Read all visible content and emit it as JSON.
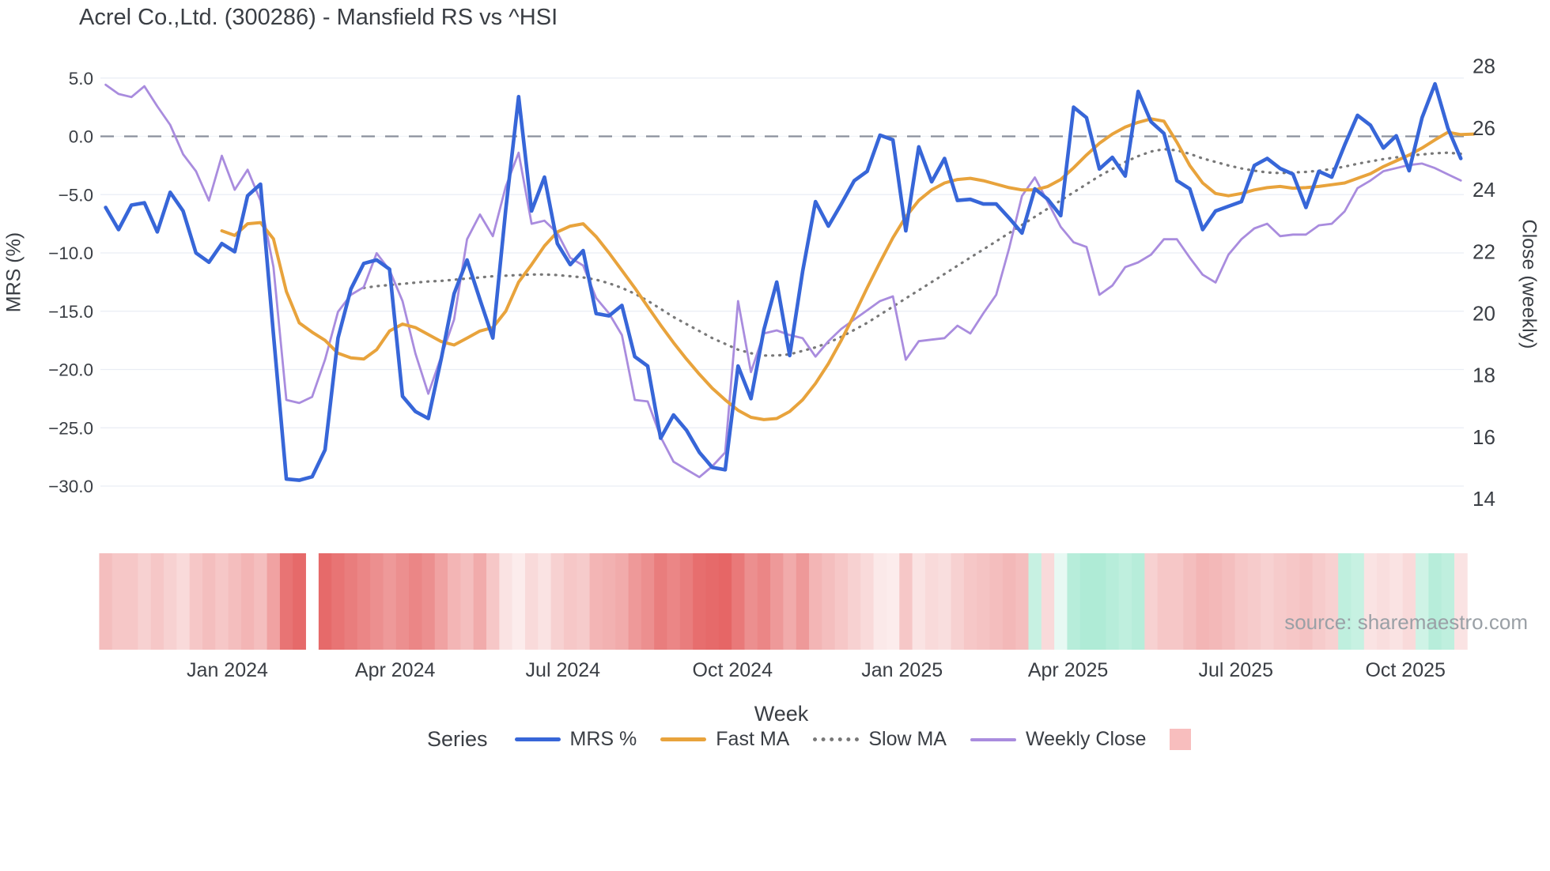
{
  "title": "Acrel Co.,Ltd. (300286) - Mansfield RS vs ^HSI",
  "source_note": "source: sharemaestro.com",
  "axes": {
    "left_title": "MRS (%)",
    "right_title": "Close (weekly)",
    "x_title": "Week",
    "left_ticks": [
      {
        "label": "5.0",
        "v": 5
      },
      {
        "label": "0.0",
        "v": 0
      },
      {
        "label": "−5.0",
        "v": -5
      },
      {
        "label": "−10.0",
        "v": -10
      },
      {
        "label": "−15.0",
        "v": -15
      },
      {
        "label": "−20.0",
        "v": -20
      },
      {
        "label": "−25.0",
        "v": -25
      },
      {
        "label": "−30.0",
        "v": -30
      }
    ],
    "right_ticks": [
      {
        "label": "28",
        "v": 28
      },
      {
        "label": "26",
        "v": 26
      },
      {
        "label": "24",
        "v": 24
      },
      {
        "label": "22",
        "v": 22
      },
      {
        "label": "20",
        "v": 20
      },
      {
        "label": "18",
        "v": 18
      },
      {
        "label": "16",
        "v": 16
      },
      {
        "label": "14",
        "v": 14
      }
    ],
    "x_ticks": [
      {
        "label": "Jan 2024",
        "week": 9.43
      },
      {
        "label": "Apr 2024",
        "week": 22.43
      },
      {
        "label": "Jul 2024",
        "week": 35.43
      },
      {
        "label": "Oct 2024",
        "week": 48.57
      },
      {
        "label": "Jan 2025",
        "week": 61.71
      },
      {
        "label": "Apr 2025",
        "week": 74.57
      },
      {
        "label": "Jul 2025",
        "week": 87.57
      },
      {
        "label": "Oct 2025",
        "week": 100.71
      }
    ]
  },
  "legend": {
    "title": "Series",
    "items": [
      {
        "label": "MRS %",
        "type": "line",
        "color": "#3766D8"
      },
      {
        "label": "Fast MA",
        "type": "line",
        "color": "#E8A33C"
      },
      {
        "label": "Slow MA",
        "type": "dotted",
        "color": "#787878"
      },
      {
        "label": "Weekly Close",
        "type": "line",
        "color": "#A98CDE"
      },
      {
        "label": "",
        "type": "square",
        "color": "#F8BEBE"
      }
    ]
  },
  "chart_data": {
    "type": "line",
    "subtype": "multi-series weekly lines + heatmap strip",
    "title": "Acrel Co.,Ltd. (300286) - Mansfield RS vs ^HSI",
    "xlabel": "Week",
    "ylabel_left": "MRS (%)",
    "ylabel_right": "Close (weekly)",
    "x_start_date": "2023-10-27",
    "x_end_date": "2025-10-31",
    "x_freq": "weekly",
    "n_weeks": 106,
    "ylim_left": [
      -32.5,
      7.0
    ],
    "ylim_right": [
      13.6,
      28.1
    ],
    "grid": "horizontal-only",
    "zero_line": {
      "value": 0,
      "axis": "left",
      "style": "dashed",
      "color": "#8A909C"
    },
    "missing_week_index": 16,
    "series": [
      {
        "name": "MRS %",
        "axis": "left",
        "color": "#3766D8",
        "style": "solid",
        "width": 4.6,
        "start_week": 0,
        "values": [
          -6.1,
          -8.0,
          -5.9,
          -5.7,
          -8.2,
          -4.8,
          -6.4,
          -10.0,
          -10.8,
          -9.2,
          -9.9,
          -5.1,
          -4.1,
          -17.0,
          -29.4,
          -29.5,
          -29.2,
          -26.9,
          -17.3,
          -13.1,
          -10.9,
          -10.6,
          -11.4,
          -22.3,
          -23.6,
          -24.2,
          -19.1,
          -13.5,
          -10.6,
          -14.0,
          -17.3,
          -6.3,
          3.4,
          -6.4,
          -3.5,
          -9.2,
          -11.0,
          -9.8,
          -15.2,
          -15.4,
          -14.5,
          -18.9,
          -19.7,
          -25.9,
          -23.9,
          -25.2,
          -27.1,
          -28.4,
          -28.6,
          -19.7,
          -22.5,
          -16.6,
          -12.5,
          -18.8,
          -11.6,
          -5.6,
          -7.7,
          -5.8,
          -3.8,
          -3.0,
          0.1,
          -0.3,
          -8.1,
          -0.9,
          -3.9,
          -1.9,
          -5.5,
          -5.4,
          -5.8,
          -5.8,
          -7.0,
          -8.3,
          -4.5,
          -5.4,
          -6.8,
          2.5,
          1.6,
          -2.8,
          -1.8,
          -3.4,
          3.85,
          1.25,
          0.25,
          -3.8,
          -4.5,
          -8.0,
          -6.4,
          -6.0,
          -5.6,
          -2.5,
          -1.9,
          -2.75,
          -3.25,
          -6.1,
          -3.0,
          -3.5,
          -0.75,
          1.8,
          0.95,
          -1.0,
          0.05,
          -2.95,
          1.6,
          4.5,
          0.7,
          -1.9
        ]
      },
      {
        "name": "Fast MA",
        "axis": "left",
        "color": "#E8A33C",
        "style": "solid",
        "width": 4.0,
        "start_week": 9,
        "values": [
          -8.1,
          -8.5,
          -7.5,
          -7.4,
          -8.8,
          -13.3,
          -16.0,
          -16.8,
          -17.5,
          -18.6,
          -19.0,
          -19.1,
          -18.3,
          -16.7,
          -16.1,
          -16.4,
          -17.0,
          -17.6,
          -17.9,
          -17.3,
          -16.7,
          -16.4,
          -15.0,
          -12.5,
          -11.0,
          -9.4,
          -8.2,
          -7.7,
          -7.5,
          -8.6,
          -10.0,
          -11.5,
          -13.0,
          -14.6,
          -16.2,
          -17.7,
          -19.1,
          -20.4,
          -21.6,
          -22.6,
          -23.5,
          -24.1,
          -24.3,
          -24.2,
          -23.6,
          -22.6,
          -21.2,
          -19.5,
          -17.5,
          -15.3,
          -13.0,
          -10.8,
          -8.7,
          -6.9,
          -5.5,
          -4.6,
          -4.0,
          -3.7,
          -3.6,
          -3.8,
          -4.1,
          -4.4,
          -4.6,
          -4.6,
          -4.3,
          -3.7,
          -2.7,
          -1.6,
          -0.6,
          0.2,
          0.8,
          1.2,
          1.5,
          1.3,
          -0.5,
          -2.5,
          -4.0,
          -4.9,
          -5.1,
          -4.9,
          -4.6,
          -4.4,
          -4.3,
          -4.45,
          -4.4,
          -4.3,
          -4.15,
          -4.0,
          -3.6,
          -3.2,
          -2.6,
          -2.1,
          -1.6,
          -1.0,
          -0.3,
          0.35,
          0.15,
          0.2
        ]
      },
      {
        "name": "Slow MA",
        "axis": "left",
        "color": "#787878",
        "style": "dotted",
        "width": 3.2,
        "start_week": 20,
        "values": [
          -13.0,
          -12.85,
          -12.75,
          -12.65,
          -12.55,
          -12.45,
          -12.4,
          -12.3,
          -12.2,
          -12.1,
          -12.0,
          -11.95,
          -11.9,
          -11.85,
          -11.85,
          -11.9,
          -12.0,
          -12.1,
          -12.3,
          -12.6,
          -13.0,
          -13.5,
          -14.1,
          -14.8,
          -15.5,
          -16.1,
          -16.7,
          -17.3,
          -17.8,
          -18.3,
          -18.6,
          -18.8,
          -18.8,
          -18.7,
          -18.4,
          -18.1,
          -17.7,
          -17.2,
          -16.6,
          -16.0,
          -15.3,
          -14.6,
          -13.9,
          -13.2,
          -12.5,
          -11.8,
          -11.1,
          -10.4,
          -9.7,
          -9.0,
          -8.3,
          -7.6,
          -6.9,
          -6.2,
          -5.5,
          -4.8,
          -4.1,
          -3.4,
          -2.8,
          -2.2,
          -1.7,
          -1.3,
          -1.1,
          -1.2,
          -1.5,
          -1.9,
          -2.2,
          -2.5,
          -2.75,
          -2.95,
          -3.1,
          -3.15,
          -3.1,
          -3.05,
          -2.95,
          -2.8,
          -2.6,
          -2.35,
          -2.15,
          -1.95,
          -1.8,
          -1.65,
          -1.55,
          -1.45,
          -1.4,
          -1.5
        ]
      },
      {
        "name": "Weekly Close",
        "axis": "right",
        "color": "#A98CDE",
        "style": "solid",
        "width": 2.8,
        "start_week": 0,
        "values": [
          27.4,
          27.1,
          27.0,
          27.35,
          26.7,
          26.1,
          25.15,
          24.6,
          23.65,
          25.1,
          24.0,
          24.65,
          23.65,
          21.5,
          17.2,
          17.1,
          17.3,
          18.5,
          20.05,
          20.6,
          20.85,
          21.95,
          21.4,
          20.4,
          18.7,
          17.4,
          18.6,
          19.8,
          22.4,
          23.2,
          22.5,
          24.1,
          25.2,
          22.9,
          23.0,
          22.6,
          21.8,
          21.55,
          20.5,
          20.0,
          19.3,
          17.2,
          17.15,
          16.0,
          15.2,
          14.95,
          14.7,
          15.05,
          15.5,
          20.4,
          18.1,
          19.35,
          19.45,
          19.3,
          19.2,
          18.6,
          19.1,
          19.5,
          19.8,
          20.1,
          20.4,
          20.55,
          18.5,
          19.1,
          19.15,
          19.2,
          19.6,
          19.35,
          20.0,
          20.6,
          22.1,
          23.8,
          24.4,
          23.6,
          22.8,
          22.3,
          22.15,
          20.6,
          20.9,
          21.5,
          21.65,
          21.9,
          22.4,
          22.4,
          21.8,
          21.25,
          21.0,
          21.9,
          22.4,
          22.75,
          22.9,
          22.5,
          22.55,
          22.55,
          22.85,
          22.9,
          23.3,
          24.05,
          24.3,
          24.6,
          24.7,
          24.8,
          24.85,
          24.7,
          24.5,
          24.3
        ]
      }
    ],
    "heatmap": {
      "description": "weekly color strip under chart; negative=red intensity, positive=green intensity, null=gap",
      "colormap": {
        "negative": "#E04545",
        "zero": "#FFFFFF",
        "positive": "#5FD6AC"
      },
      "values": [
        -0.35,
        -0.3,
        -0.3,
        -0.25,
        -0.3,
        -0.25,
        -0.2,
        -0.3,
        -0.35,
        -0.3,
        -0.35,
        -0.4,
        -0.35,
        -0.5,
        -0.75,
        -0.8,
        null,
        -0.8,
        -0.75,
        -0.7,
        -0.65,
        -0.6,
        -0.55,
        -0.6,
        -0.65,
        -0.6,
        -0.5,
        -0.4,
        -0.35,
        -0.45,
        -0.3,
        -0.15,
        -0.1,
        -0.2,
        -0.15,
        -0.25,
        -0.3,
        -0.28,
        -0.4,
        -0.42,
        -0.45,
        -0.55,
        -0.6,
        -0.7,
        -0.65,
        -0.7,
        -0.78,
        -0.8,
        -0.82,
        -0.72,
        -0.6,
        -0.65,
        -0.55,
        -0.45,
        -0.55,
        -0.4,
        -0.35,
        -0.3,
        -0.25,
        -0.2,
        -0.12,
        -0.1,
        -0.3,
        -0.15,
        -0.2,
        -0.18,
        -0.25,
        -0.3,
        -0.32,
        -0.35,
        -0.38,
        -0.35,
        0.35,
        -0.2,
        0.15,
        0.45,
        0.5,
        0.5,
        0.45,
        0.4,
        0.45,
        -0.25,
        -0.3,
        -0.3,
        -0.35,
        -0.4,
        -0.38,
        -0.35,
        -0.3,
        -0.28,
        -0.25,
        -0.28,
        -0.3,
        -0.32,
        -0.28,
        -0.25,
        0.4,
        0.35,
        -0.15,
        -0.18,
        -0.15,
        -0.2,
        0.3,
        0.45,
        0.4,
        -0.15
      ]
    }
  },
  "style_colors": {
    "grid": "#E9EDF4",
    "tick_text": "#3A3E44",
    "title_text": "#3A3E44",
    "zero_dash": "#8A909C",
    "source_text": "#9AA0A6"
  }
}
